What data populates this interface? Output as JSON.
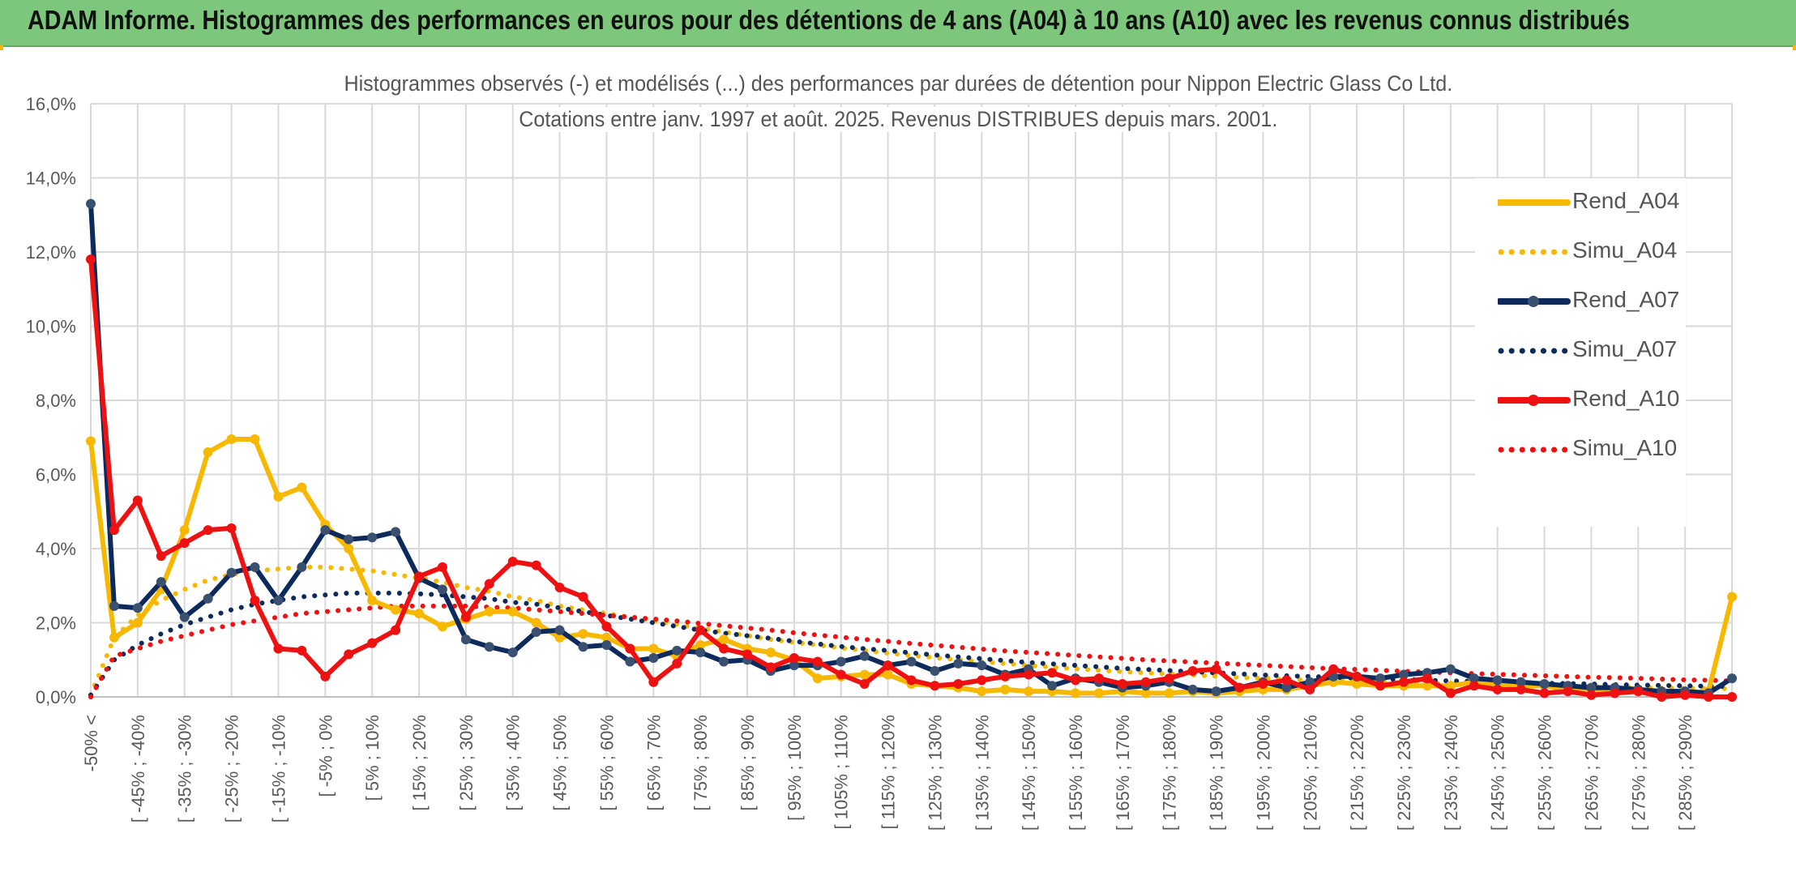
{
  "banner": {
    "title": "ADAM Informe. Histogrammes des performances en euros pour des détentions de 4 ans (A04) à 10 ans (A10) avec les revenus connus distribués"
  },
  "chart_data": {
    "type": "line",
    "title_line1": "Histogrammes observés (-) et modélisés (...) des performances par durées de détention pour Nippon Electric Glass Co Ltd.",
    "title_line2": "Cotations entre janv. 1997 et août. 2025. Revenus DISTRIBUES depuis mars. 2001.",
    "grid": true,
    "legend_position": "right",
    "y_ticks": [
      "0,0%",
      "2,0%",
      "4,0%",
      "6,0%",
      "8,0%",
      "10,0%",
      "12,0%",
      "14,0%",
      "16,0%"
    ],
    "ylim": [
      0,
      16
    ],
    "x_tick_labels": [
      "-50% <",
      "[ -45% ; -40%",
      "[ -35% ; -30%",
      "[ -25% ; -20%",
      "[ -15% ; -10%",
      "[ -5% ; 0%",
      "[ 5% ; 10%",
      "[ 15% ; 20%",
      "[ 25% ; 30%",
      "[ 35% ; 40%",
      "[ 45% ; 50%",
      "[ 55% ; 60%",
      "[ 65% ; 70%",
      "[ 75% ; 80%",
      "[ 85% ; 90%",
      "[ 95% ; 100%",
      "[ 105% ; 110%",
      "[ 115% ; 120%",
      "[ 125% ; 130%",
      "[ 135% ; 140%",
      "[ 145% ; 150%",
      "[ 155% ; 160%",
      "[ 165% ; 170%",
      "[ 175% ; 180%",
      "[ 185% ; 190%",
      "[ 195% ; 200%",
      "[ 205% ; 210%",
      "[ 215% ; 220%",
      "[ 225% ; 230%",
      "[ 235% ; 240%",
      "[ 245% ; 250%",
      "[ 255% ; 260%",
      "[ 265% ; 270%",
      "[ 275% ; 280%",
      "[ 285% ; 290%"
    ],
    "category_count": 71,
    "series": [
      {
        "name": "Rend_A04",
        "style": "solid",
        "color": "#f7b800",
        "values": [
          6.9,
          1.6,
          2.0,
          2.9,
          4.5,
          6.6,
          6.95,
          6.95,
          5.4,
          5.65,
          4.65,
          4.0,
          2.6,
          2.35,
          2.25,
          1.9,
          2.1,
          2.3,
          2.3,
          2.0,
          1.6,
          1.7,
          1.6,
          1.3,
          1.3,
          1.1,
          1.4,
          1.55,
          1.3,
          1.2,
          1.0,
          0.5,
          0.55,
          0.6,
          0.6,
          0.35,
          0.3,
          0.25,
          0.15,
          0.2,
          0.15,
          0.15,
          0.1,
          0.1,
          0.15,
          0.1,
          0.1,
          0.15,
          0.1,
          0.15,
          0.2,
          0.2,
          0.3,
          0.4,
          0.35,
          0.3,
          0.3,
          0.3,
          0.3,
          0.4,
          0.35,
          0.3,
          0.3,
          0.2,
          0.2,
          0.15,
          0.15,
          0.15,
          0.1,
          0.15,
          2.7
        ]
      },
      {
        "name": "Simu_A04",
        "style": "dotted",
        "color": "#f7b800",
        "values": [
          0.05,
          1.6,
          2.2,
          2.6,
          2.9,
          3.15,
          3.3,
          3.4,
          3.45,
          3.5,
          3.5,
          3.45,
          3.4,
          3.3,
          3.2,
          3.1,
          2.95,
          2.85,
          2.7,
          2.6,
          2.45,
          2.35,
          2.25,
          2.15,
          2.05,
          1.95,
          1.85,
          1.75,
          1.65,
          1.55,
          1.47,
          1.4,
          1.32,
          1.25,
          1.18,
          1.12,
          1.06,
          1.0,
          0.95,
          0.9,
          0.85,
          0.8,
          0.76,
          0.72,
          0.68,
          0.65,
          0.62,
          0.59,
          0.56,
          0.53,
          0.5,
          0.48,
          0.46,
          0.44,
          0.42,
          0.4,
          0.38,
          0.36,
          0.35,
          0.33,
          0.32,
          0.31,
          0.3,
          0.29,
          0.28,
          0.27,
          0.26,
          0.25,
          0.24,
          0.23,
          0.22
        ]
      },
      {
        "name": "Rend_A07",
        "style": "solid",
        "color": "#0d2a5c",
        "values": [
          13.3,
          2.45,
          2.4,
          3.1,
          2.15,
          2.65,
          3.35,
          3.5,
          2.6,
          3.5,
          4.5,
          4.25,
          4.3,
          4.45,
          3.2,
          2.9,
          1.55,
          1.35,
          1.2,
          1.75,
          1.8,
          1.35,
          1.4,
          0.95,
          1.05,
          1.25,
          1.2,
          0.95,
          1.0,
          0.7,
          0.85,
          0.85,
          0.95,
          1.1,
          0.85,
          0.95,
          0.7,
          0.9,
          0.85,
          0.6,
          0.75,
          0.3,
          0.5,
          0.4,
          0.25,
          0.3,
          0.4,
          0.2,
          0.15,
          0.25,
          0.4,
          0.25,
          0.4,
          0.55,
          0.55,
          0.5,
          0.6,
          0.65,
          0.75,
          0.5,
          0.45,
          0.4,
          0.35,
          0.3,
          0.25,
          0.25,
          0.2,
          0.15,
          0.15,
          0.1,
          0.5
        ]
      },
      {
        "name": "Simu_A07",
        "style": "dotted",
        "color": "#0d2a5c",
        "values": [
          0.05,
          1.0,
          1.4,
          1.7,
          1.95,
          2.15,
          2.35,
          2.5,
          2.6,
          2.7,
          2.75,
          2.8,
          2.8,
          2.8,
          2.78,
          2.75,
          2.7,
          2.65,
          2.55,
          2.5,
          2.4,
          2.3,
          2.2,
          2.1,
          2.0,
          1.9,
          1.8,
          1.72,
          1.65,
          1.58,
          1.5,
          1.43,
          1.36,
          1.3,
          1.25,
          1.19,
          1.13,
          1.08,
          1.03,
          0.98,
          0.93,
          0.89,
          0.85,
          0.81,
          0.77,
          0.74,
          0.71,
          0.68,
          0.65,
          0.62,
          0.59,
          0.57,
          0.55,
          0.53,
          0.51,
          0.49,
          0.47,
          0.45,
          0.43,
          0.42,
          0.4,
          0.39,
          0.37,
          0.36,
          0.35,
          0.33,
          0.32,
          0.31,
          0.3,
          0.29,
          0.28
        ]
      },
      {
        "name": "Rend_A10",
        "style": "solid",
        "color": "#ee1111",
        "values": [
          11.8,
          4.5,
          5.3,
          3.8,
          4.15,
          4.5,
          4.55,
          2.6,
          1.3,
          1.25,
          0.55,
          1.15,
          1.45,
          1.8,
          3.25,
          3.5,
          2.15,
          3.05,
          3.65,
          3.55,
          2.95,
          2.7,
          1.9,
          1.3,
          0.4,
          0.9,
          1.8,
          1.3,
          1.15,
          0.8,
          1.05,
          0.95,
          0.6,
          0.35,
          0.85,
          0.45,
          0.3,
          0.35,
          0.45,
          0.55,
          0.6,
          0.65,
          0.45,
          0.5,
          0.35,
          0.4,
          0.5,
          0.7,
          0.75,
          0.25,
          0.35,
          0.45,
          0.2,
          0.75,
          0.55,
          0.3,
          0.4,
          0.5,
          0.1,
          0.3,
          0.2,
          0.2,
          0.1,
          0.15,
          0.05,
          0.1,
          0.15,
          0.0,
          0.05,
          0.0,
          0.0
        ]
      },
      {
        "name": "Simu_A10",
        "style": "dotted",
        "color": "#ee1111",
        "values": [
          0.0,
          1.1,
          1.3,
          1.5,
          1.65,
          1.8,
          1.95,
          2.05,
          2.15,
          2.25,
          2.3,
          2.35,
          2.4,
          2.45,
          2.45,
          2.45,
          2.45,
          2.42,
          2.4,
          2.35,
          2.3,
          2.25,
          2.2,
          2.15,
          2.1,
          2.05,
          1.98,
          1.92,
          1.86,
          1.8,
          1.73,
          1.67,
          1.61,
          1.55,
          1.5,
          1.44,
          1.39,
          1.34,
          1.29,
          1.24,
          1.2,
          1.16,
          1.12,
          1.08,
          1.04,
          1.0,
          0.97,
          0.94,
          0.91,
          0.88,
          0.85,
          0.82,
          0.79,
          0.76,
          0.74,
          0.72,
          0.69,
          0.67,
          0.65,
          0.63,
          0.61,
          0.59,
          0.57,
          0.55,
          0.53,
          0.52,
          0.5,
          0.48,
          0.46,
          0.45,
          0.43
        ]
      }
    ]
  }
}
